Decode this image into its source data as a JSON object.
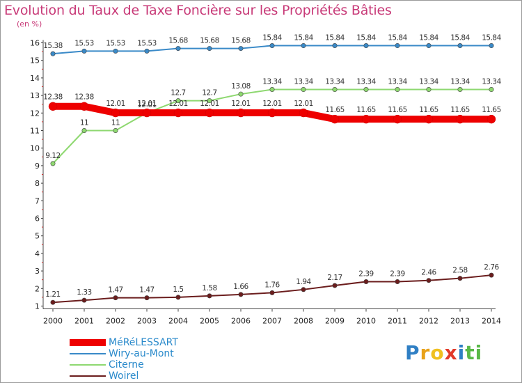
{
  "title": "Evolution du Taux de Taxe Foncière sur les Propriétés Bâties",
  "unit_label": "(en %)",
  "brand": {
    "letters": [
      "P",
      "r",
      "o",
      "x",
      "i",
      "t",
      "i"
    ],
    "colors": [
      "#2f7fc4",
      "#e8a21a",
      "#f0c020",
      "#e23a2a",
      "#2f7fc4",
      "#59b847",
      "#59b847"
    ]
  },
  "chart_data": {
    "type": "line",
    "title": "Evolution du Taux de Taxe Foncière sur les Propriétés Bâties",
    "ylabel": "(en %)",
    "x": [
      "2000",
      "2001",
      "2002",
      "2003",
      "2004",
      "2005",
      "2006",
      "2007",
      "2008",
      "2009",
      "2010",
      "2011",
      "2012",
      "2013",
      "2014"
    ],
    "ylim": [
      1,
      16
    ],
    "yticks": [
      "1",
      "2",
      "3",
      "4",
      "5",
      "6",
      "7",
      "8",
      "9",
      "10",
      "11",
      "12",
      "13",
      "14",
      "15",
      "16"
    ],
    "series": [
      {
        "name": "MéRéLESSART",
        "color": "#ee0000",
        "emphasis": true,
        "values": [
          12.38,
          12.38,
          12.01,
          12.01,
          12.01,
          12.01,
          12.01,
          12.01,
          12.01,
          11.65,
          11.65,
          11.65,
          11.65,
          11.65,
          11.65
        ],
        "labels": [
          "12.38",
          "12.38",
          "12.01",
          "12.01",
          "12.01",
          "12.01",
          "12.01",
          "12.01",
          "12.01",
          "11.65",
          "11.65",
          "11.65",
          "11.65",
          "11.65",
          "11.65"
        ]
      },
      {
        "name": "Wiry-au-Mont",
        "color": "#3a8ac8",
        "emphasis": false,
        "values": [
          15.38,
          15.53,
          15.53,
          15.53,
          15.68,
          15.68,
          15.68,
          15.84,
          15.84,
          15.84,
          15.84,
          15.84,
          15.84,
          15.84,
          15.84
        ],
        "labels": [
          "15.38",
          "15.53",
          "15.53",
          "15.53",
          "15.68",
          "15.68",
          "15.68",
          "15.84",
          "15.84",
          "15.84",
          "15.84",
          "15.84",
          "15.84",
          "15.84",
          "15.84"
        ]
      },
      {
        "name": "Citerne",
        "color": "#8ed870",
        "emphasis": false,
        "values": [
          9.12,
          11,
          11,
          12.01,
          12.7,
          12.7,
          13.08,
          13.34,
          13.34,
          13.34,
          13.34,
          13.34,
          13.34,
          13.34,
          13.34
        ],
        "labels": [
          "9.12",
          "11",
          "11",
          "12.01",
          "12.7",
          "12.7",
          "13.08",
          "13.34",
          "13.34",
          "13.34",
          "13.34",
          "13.34",
          "13.34",
          "13.34",
          "13.34"
        ]
      },
      {
        "name": "Woirel",
        "color": "#6b1d1d",
        "emphasis": false,
        "values": [
          1.21,
          1.33,
          1.47,
          1.47,
          1.5,
          1.58,
          1.66,
          1.76,
          1.94,
          2.17,
          2.39,
          2.39,
          2.46,
          2.58,
          2.76
        ],
        "labels": [
          "1.21",
          "1.33",
          "1.47",
          "1.47",
          "1.5",
          "1.58",
          "1.66",
          "1.76",
          "1.94",
          "2.17",
          "2.39",
          "2.39",
          "2.46",
          "2.58",
          "2.76"
        ]
      }
    ],
    "legend": [
      "MéRéLESSART",
      "Wiry-au-Mont",
      "Citerne",
      "Woirel"
    ],
    "legend_position": "bottom-left",
    "grid": false
  }
}
